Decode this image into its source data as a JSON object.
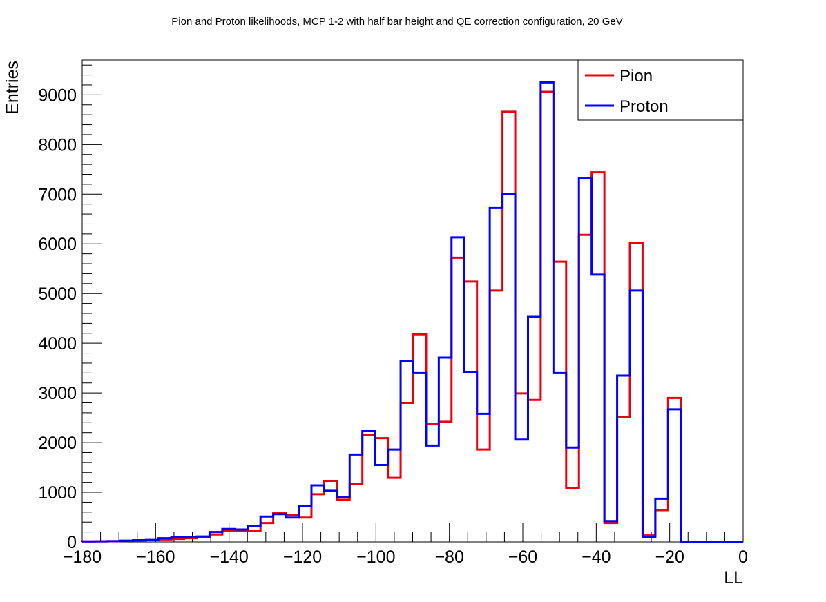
{
  "chart_data": {
    "type": "step-histogram",
    "title": "Pion and Proton likelihoods, MCP 1-2 with half bar height and QE correction configuration, 20 GeV",
    "xlabel": "LL",
    "ylabel": "Entries",
    "xlim": [
      -180,
      0
    ],
    "ylim": [
      0,
      9700
    ],
    "x_ticks": [
      -180,
      -160,
      -140,
      -120,
      -100,
      -80,
      -60,
      -40,
      -20,
      0
    ],
    "y_ticks": [
      0,
      1000,
      2000,
      3000,
      4000,
      5000,
      6000,
      7000,
      8000,
      9000
    ],
    "x_tick_labels": [
      "−180",
      "−160",
      "−140",
      "−120",
      "−100",
      "−80",
      "−60",
      "−40",
      "−20",
      "0"
    ],
    "y_tick_labels": [
      "0",
      "1000",
      "2000",
      "3000",
      "4000",
      "5000",
      "6000",
      "7000",
      "8000",
      "9000"
    ],
    "grid": false,
    "legend_position": "top-right",
    "bin_edges": [
      -180.0,
      -176.53,
      -173.06,
      -169.59,
      -166.13,
      -162.66,
      -159.19,
      -155.72,
      -152.25,
      -148.78,
      -145.31,
      -141.84,
      -138.38,
      -134.91,
      -131.44,
      -127.97,
      -124.5,
      -121.03,
      -117.56,
      -114.09,
      -110.63,
      -107.16,
      -103.69,
      -100.22,
      -96.75,
      -93.28,
      -89.81,
      -86.34,
      -82.88,
      -79.41,
      -75.94,
      -72.47,
      -69.0,
      -65.53,
      -62.06,
      -58.59,
      -55.13,
      -51.66,
      -48.19,
      -44.72,
      -41.25,
      -37.78,
      -34.31,
      -30.84,
      -27.38,
      -23.91,
      -20.44,
      -16.97,
      -13.5,
      -10.03,
      -6.56,
      -3.09,
      0.0
    ],
    "series": [
      {
        "name": "Pion",
        "color": "#e8000b",
        "values": [
          10,
          12,
          15,
          25,
          30,
          35,
          50,
          60,
          75,
          90,
          150,
          230,
          230,
          230,
          380,
          580,
          540,
          490,
          960,
          1230,
          850,
          1160,
          2150,
          2090,
          1290,
          2800,
          4180,
          2370,
          2420,
          5720,
          5240,
          1860,
          5060,
          8660,
          2990,
          2860,
          9060,
          5640,
          1080,
          6180,
          7440,
          380,
          2510,
          6020,
          130,
          640,
          2900,
          0,
          0,
          0,
          0,
          0
        ]
      },
      {
        "name": "Proton",
        "color": "#0000ff",
        "values": [
          10,
          12,
          15,
          25,
          35,
          40,
          75,
          95,
          95,
          110,
          200,
          260,
          250,
          320,
          510,
          560,
          490,
          720,
          1140,
          1030,
          900,
          1760,
          2230,
          1550,
          1860,
          3640,
          3400,
          1940,
          3710,
          6130,
          3420,
          2580,
          6720,
          7000,
          2060,
          4530,
          9250,
          3400,
          1900,
          7330,
          5380,
          420,
          3350,
          5060,
          90,
          870,
          2670,
          0,
          0,
          0,
          0,
          0
        ]
      }
    ]
  }
}
